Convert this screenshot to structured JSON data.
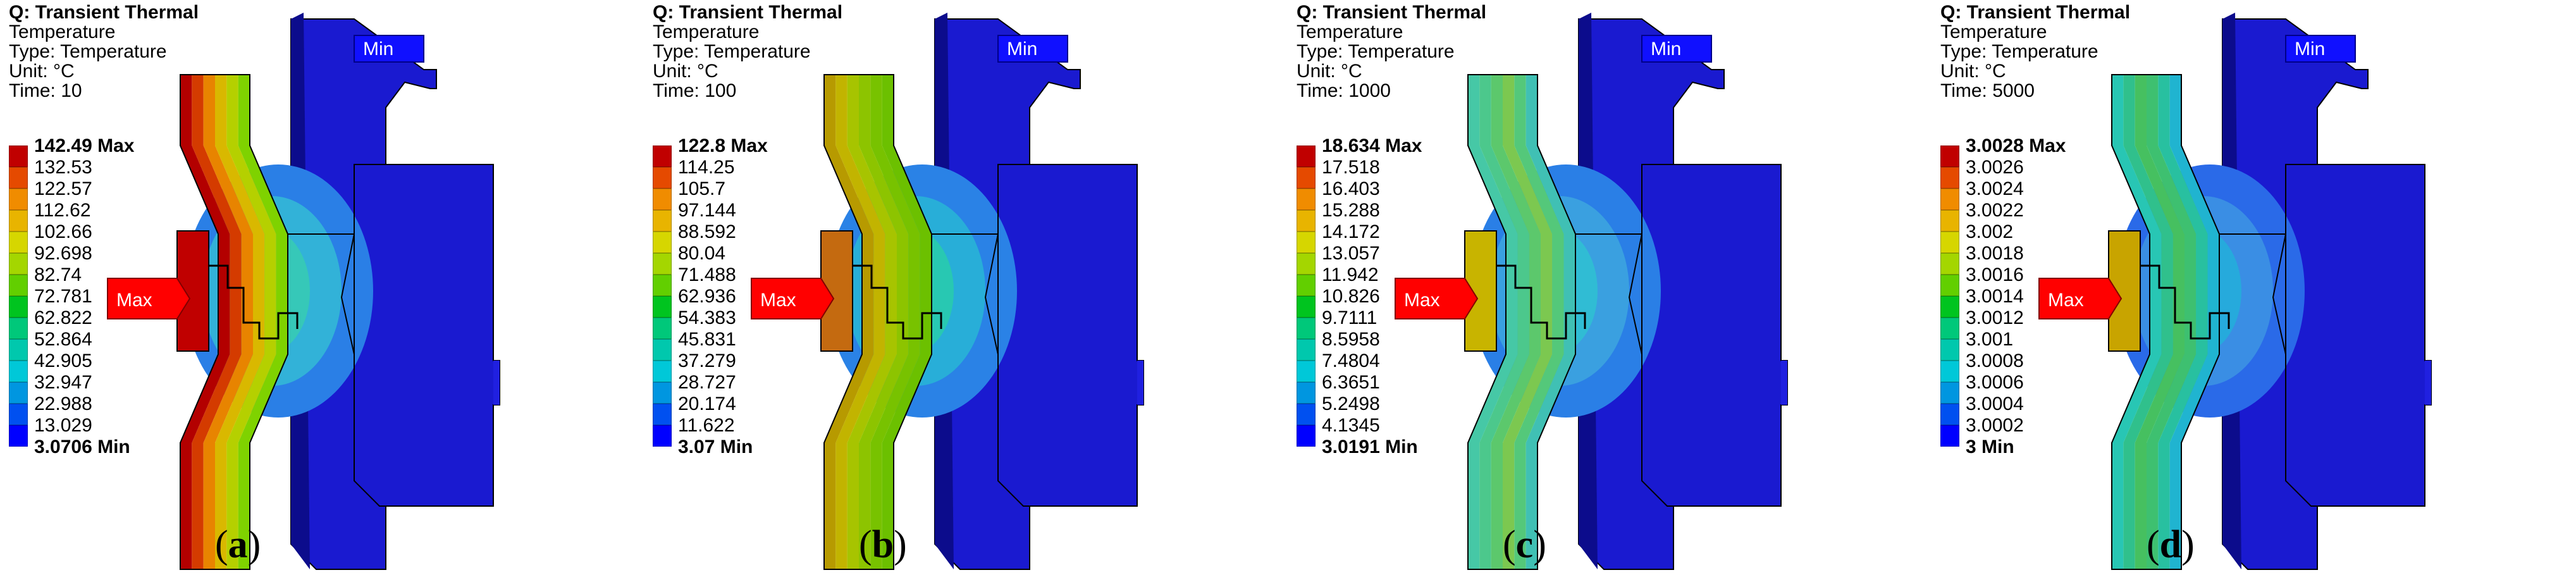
{
  "colors": {
    "scale": [
      "#c00000",
      "#e54a00",
      "#f08c00",
      "#e8b400",
      "#d6d600",
      "#a4d600",
      "#62cf00",
      "#00c41f",
      "#00c87a",
      "#00c8ad",
      "#00c8d8",
      "#0096e0",
      "#0050f0",
      "#0000ff"
    ],
    "min_flag": "#1010ff",
    "max_flag": "#ff0000",
    "body_blue": "#1414c8"
  },
  "panels": [
    {
      "caption_letter": "a",
      "header": {
        "title": "Q: Transient Thermal",
        "line1": "Temperature",
        "line2": "Type: Temperature",
        "line3": "Unit: °C",
        "line4": "Time: 10"
      },
      "legend": [
        "142.49 Max",
        "132.53",
        "122.57",
        "112.62",
        "102.66",
        "92.698",
        "82.74",
        "72.781",
        "62.822",
        "52.864",
        "42.905",
        "32.947",
        "22.988",
        "13.029",
        "3.0706 Min"
      ],
      "max_label": "Max",
      "min_label": "Min"
    },
    {
      "caption_letter": "b",
      "header": {
        "title": "Q: Transient Thermal",
        "line1": "Temperature",
        "line2": "Type: Temperature",
        "line3": "Unit: °C",
        "line4": "Time: 100"
      },
      "legend": [
        "122.8 Max",
        "114.25",
        "105.7",
        "97.144",
        "88.592",
        "80.04",
        "71.488",
        "62.936",
        "54.383",
        "45.831",
        "37.279",
        "28.727",
        "20.174",
        "11.622",
        "3.07 Min"
      ],
      "max_label": "Max",
      "min_label": "Min"
    },
    {
      "caption_letter": "c",
      "header": {
        "title": "Q: Transient Thermal",
        "line1": "Temperature",
        "line2": "Type: Temperature",
        "line3": "Unit: °C",
        "line4": "Time: 1000"
      },
      "legend": [
        "18.634 Max",
        "17.518",
        "16.403",
        "15.288",
        "14.172",
        "13.057",
        "11.942",
        "10.826",
        "9.7111",
        "8.5958",
        "7.4804",
        "6.3651",
        "5.2498",
        "4.1345",
        "3.0191 Min"
      ],
      "max_label": "Max",
      "min_label": "Min"
    },
    {
      "caption_letter": "d",
      "header": {
        "title": "Q: Transient Thermal",
        "line1": "Temperature",
        "line2": "Type: Temperature",
        "line3": "Unit: °C",
        "line4": "Time: 5000"
      },
      "legend": [
        "3.0028 Max",
        "3.0026",
        "3.0024",
        "3.0022",
        "3.002",
        "3.0018",
        "3.0016",
        "3.0014",
        "3.0012",
        "3.001",
        "3.0008",
        "3.0006",
        "3.0004",
        "3.0002",
        "3 Min"
      ],
      "max_label": "Max",
      "min_label": "Min"
    }
  ]
}
